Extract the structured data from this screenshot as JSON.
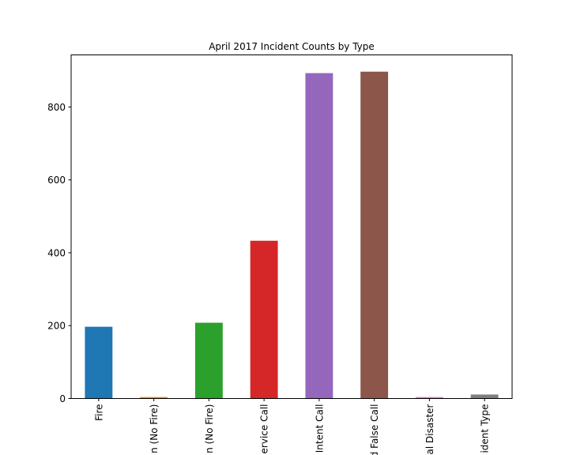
{
  "chart_data": {
    "type": "bar",
    "title": "April 2017 Incident Counts by Type",
    "xlabel": "",
    "ylabel": "",
    "categories": [
      "Fire",
      "n (No Fire)",
      "n (No Fire)",
      "ervice Call",
      "Intent Call",
      "d False Call",
      "al Disaster",
      "ident Type"
    ],
    "values": [
      197,
      4,
      208,
      433,
      893,
      897,
      4,
      11
    ],
    "colors": [
      "#1f77b4",
      "#ff7f0e",
      "#2ca02c",
      "#d62728",
      "#9467bd",
      "#8c564b",
      "#e377c2",
      "#7f7f7f"
    ],
    "ylim": [
      0,
      943
    ],
    "yticks": [
      0,
      200,
      400,
      600,
      800
    ],
    "grid": false,
    "legend": "none"
  }
}
